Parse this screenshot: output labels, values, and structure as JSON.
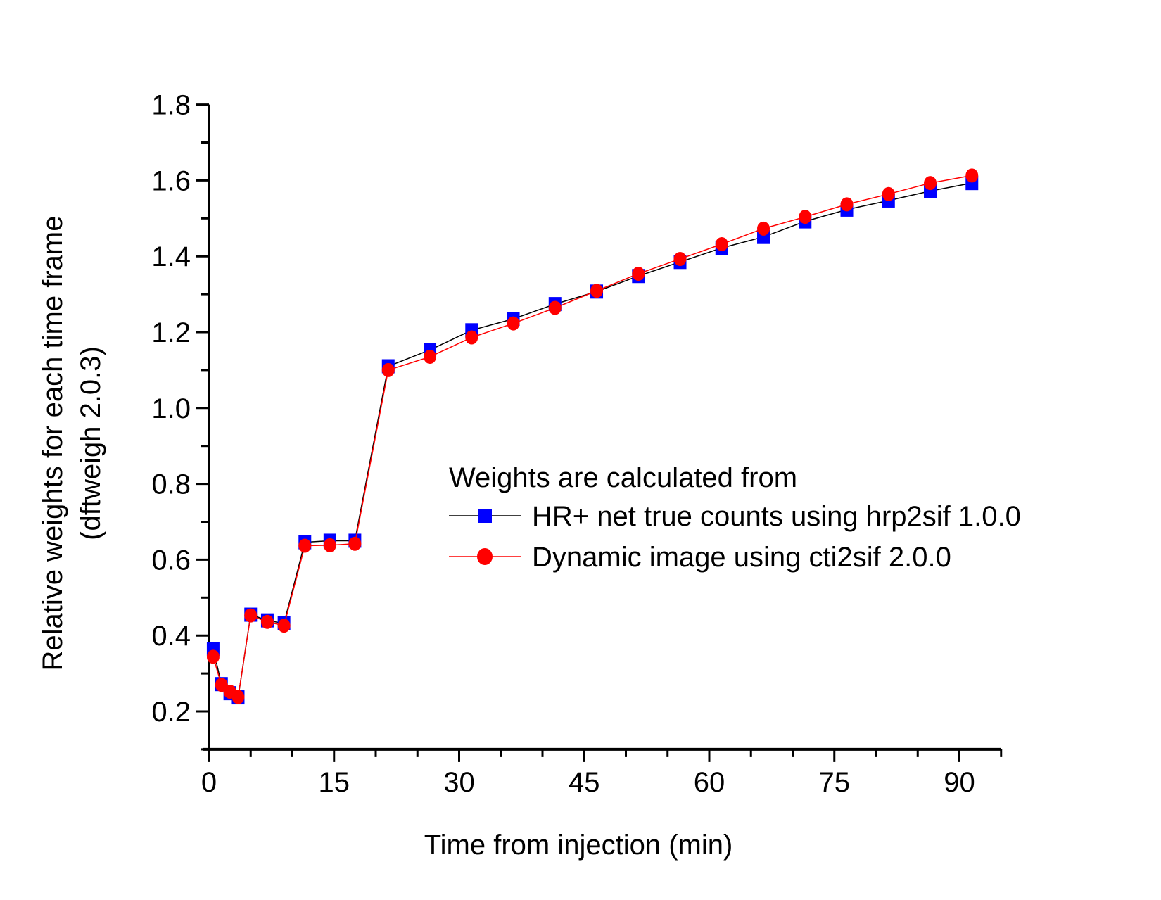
{
  "chart_data": {
    "type": "line",
    "title": "",
    "xlabel": "Time from injection (min)",
    "ylabel_lines": [
      "Relative weights for each time frame",
      "(dftweigh 2.0.3)"
    ],
    "xlim": [
      0,
      95
    ],
    "ylim": [
      0.1,
      1.8
    ],
    "xticks": [
      0,
      15,
      30,
      45,
      60,
      75,
      90
    ],
    "xtick_labels": [
      "0",
      "15",
      "30",
      "45",
      "60",
      "75",
      "90"
    ],
    "yticks": [
      0.2,
      0.4,
      0.6,
      0.8,
      1.0,
      1.2,
      1.4,
      1.6,
      1.8
    ],
    "ytick_labels": [
      "0.2",
      "0.4",
      "0.6",
      "0.8",
      "1.0",
      "1.2",
      "1.4",
      "1.6",
      "1.8"
    ],
    "grid": false,
    "legend": {
      "title": "Weights are calculated from",
      "placement": "center-right"
    },
    "x": [
      0.5,
      1.5,
      2.5,
      3.5,
      5,
      7,
      9,
      11.5,
      14.5,
      17.5,
      21.5,
      26.5,
      31.5,
      36.5,
      41.5,
      46.5,
      51.5,
      56.5,
      61.5,
      66.5,
      71.5,
      76.5,
      81.5,
      86.5,
      91.5
    ],
    "series": [
      {
        "name": "HR+ net true counts using hrp2sif 1.0.0",
        "color": "#0000ff",
        "line_color": "#000000",
        "marker": "square",
        "values": [
          0.365,
          0.272,
          0.248,
          0.237,
          0.455,
          0.44,
          0.432,
          0.646,
          0.65,
          0.65,
          1.11,
          1.153,
          1.205,
          1.235,
          1.274,
          1.307,
          1.348,
          1.385,
          1.422,
          1.451,
          1.492,
          1.523,
          1.547,
          1.572,
          1.593
        ]
      },
      {
        "name": "Dynamic image using cti2sif 2.0.0",
        "color": "#ff0000",
        "line_color": "#ff0000",
        "marker": "circle",
        "values": [
          0.344,
          0.27,
          0.252,
          0.238,
          0.453,
          0.436,
          0.426,
          0.637,
          0.638,
          0.642,
          1.1,
          1.135,
          1.186,
          1.223,
          1.264,
          1.309,
          1.354,
          1.393,
          1.432,
          1.473,
          1.504,
          1.537,
          1.564,
          1.593,
          1.613
        ]
      }
    ]
  }
}
